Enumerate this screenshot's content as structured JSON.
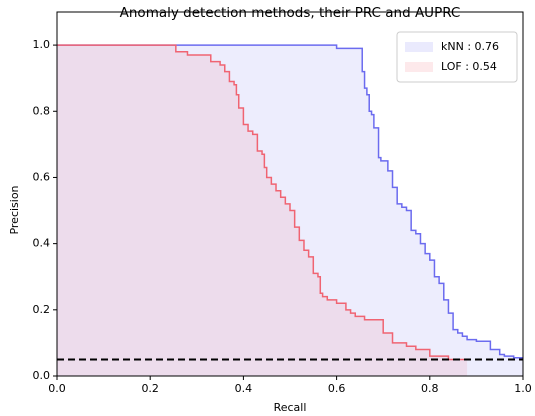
{
  "chart_data": {
    "type": "step-area",
    "title": "Anomaly detection methods, their PRC and AUPRC",
    "x_label": "Recall",
    "y_label": "Precision",
    "xlim": [
      0,
      1
    ],
    "ylim": [
      0,
      1.1
    ],
    "xticks": [
      {
        "value": 0,
        "label": "0.0"
      },
      0.2,
      0.4,
      0.6,
      0.8,
      {
        "value": 1,
        "label": "1.0"
      }
    ],
    "yticks": [
      {
        "value": 0,
        "label": "0.0"
      },
      0.2,
      0.4,
      0.6,
      0.8,
      {
        "value": 1,
        "label": "1.0"
      }
    ],
    "legend": "upper right",
    "baseline": 0.05,
    "baseline_color": "#000000",
    "fill_opacity": 0.12,
    "series": [
      {
        "name": "kNN : 0.76",
        "color": "#6b6bef",
        "x": [
          0,
          0.6,
          0.655,
          0.66,
          0.665,
          0.67,
          0.675,
          0.68,
          0.69,
          0.695,
          0.71,
          0.72,
          0.73,
          0.74,
          0.75,
          0.76,
          0.77,
          0.78,
          0.79,
          0.8,
          0.81,
          0.82,
          0.83,
          0.84,
          0.85,
          0.86,
          0.87,
          0.88,
          0.9,
          0.93,
          0.95,
          0.96,
          0.98,
          1.0
        ],
        "values": [
          1.0,
          0.99,
          0.92,
          0.87,
          0.85,
          0.8,
          0.79,
          0.75,
          0.66,
          0.65,
          0.62,
          0.57,
          0.52,
          0.51,
          0.5,
          0.44,
          0.43,
          0.4,
          0.37,
          0.35,
          0.3,
          0.28,
          0.23,
          0.19,
          0.14,
          0.13,
          0.12,
          0.11,
          0.105,
          0.08,
          0.065,
          0.06,
          0.055,
          0.055
        ]
      },
      {
        "name": "LOF : 0.54",
        "color": "#f06472",
        "x": [
          0,
          0.255,
          0.28,
          0.33,
          0.35,
          0.36,
          0.37,
          0.38,
          0.385,
          0.39,
          0.4,
          0.41,
          0.42,
          0.43,
          0.44,
          0.445,
          0.45,
          0.46,
          0.47,
          0.48,
          0.49,
          0.5,
          0.51,
          0.52,
          0.53,
          0.54,
          0.55,
          0.56,
          0.565,
          0.57,
          0.58,
          0.6,
          0.62,
          0.63,
          0.64,
          0.66,
          0.7,
          0.72,
          0.75,
          0.77,
          0.8,
          0.84,
          0.88
        ],
        "values": [
          1.0,
          0.98,
          0.97,
          0.95,
          0.94,
          0.92,
          0.89,
          0.88,
          0.85,
          0.81,
          0.76,
          0.74,
          0.73,
          0.68,
          0.67,
          0.63,
          0.6,
          0.58,
          0.56,
          0.54,
          0.52,
          0.5,
          0.45,
          0.41,
          0.38,
          0.36,
          0.31,
          0.3,
          0.25,
          0.24,
          0.23,
          0.22,
          0.2,
          0.19,
          0.18,
          0.17,
          0.13,
          0.1,
          0.09,
          0.08,
          0.06,
          0.05,
          0.05
        ]
      }
    ]
  }
}
